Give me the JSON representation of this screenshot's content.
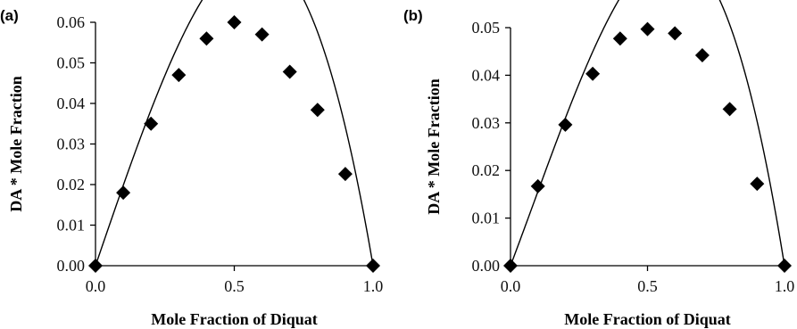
{
  "chart_data": [
    {
      "type": "scatter",
      "panel_label": "(a)",
      "xlabel": "Mole Fraction of Diquat",
      "ylabel": "DA * Mole Fraction",
      "xlim": [
        0.0,
        1.0
      ],
      "ylim": [
        0.0,
        0.06
      ],
      "xticks": [
        0.0,
        0.5,
        1.0
      ],
      "xtick_labels": [
        "0.0",
        "0.5",
        "1.0"
      ],
      "yticks": [
        0.0,
        0.01,
        0.02,
        0.03,
        0.04,
        0.05,
        0.06
      ],
      "ytick_labels": [
        "0.00",
        "0.01",
        "0.02",
        "0.03",
        "0.04",
        "0.05",
        "0.06"
      ],
      "grid": false,
      "legend": "none",
      "series": [
        {
          "marker": "diamond",
          "x": [
            0.0,
            0.1,
            0.2,
            0.3,
            0.4,
            0.5,
            0.6,
            0.7,
            0.8,
            0.9,
            1.0
          ],
          "y": [
            0.0,
            0.018,
            0.035,
            0.047,
            0.056,
            0.06,
            0.057,
            0.0478,
            0.0384,
            0.0226,
            0.0
          ]
        }
      ],
      "fit_curve": {
        "type": "polynomial",
        "coefficients_low_to_high": [
          0.0,
          0.2,
          0.0,
          -0.2
        ]
      }
    },
    {
      "type": "scatter",
      "panel_label": "(b)",
      "xlabel": "Mole Fraction of Diquat",
      "ylabel": "DA * Mole Fraction",
      "xlim": [
        0.0,
        1.0
      ],
      "ylim": [
        0.0,
        0.05
      ],
      "xticks": [
        0.0,
        0.5,
        1.0
      ],
      "xtick_labels": [
        "0.0",
        "0.5",
        "1.0"
      ],
      "yticks": [
        0.0,
        0.01,
        0.02,
        0.03,
        0.04,
        0.05
      ],
      "ytick_labels": [
        "0.00",
        "0.01",
        "0.02",
        "0.03",
        "0.04",
        "0.05"
      ],
      "grid": false,
      "legend": "none",
      "series": [
        {
          "marker": "diamond",
          "x": [
            0.0,
            0.1,
            0.2,
            0.3,
            0.4,
            0.5,
            0.6,
            0.7,
            0.8,
            0.9,
            1.0
          ],
          "y": [
            0.0,
            0.0167,
            0.0296,
            0.0403,
            0.0477,
            0.0497,
            0.0488,
            0.0442,
            0.0329,
            0.0172,
            0.0
          ]
        }
      ],
      "fit_curve": {
        "type": "polynomial",
        "coefficients_low_to_high": [
          0.0,
          0.1525,
          0.0525,
          -0.205
        ]
      }
    }
  ]
}
